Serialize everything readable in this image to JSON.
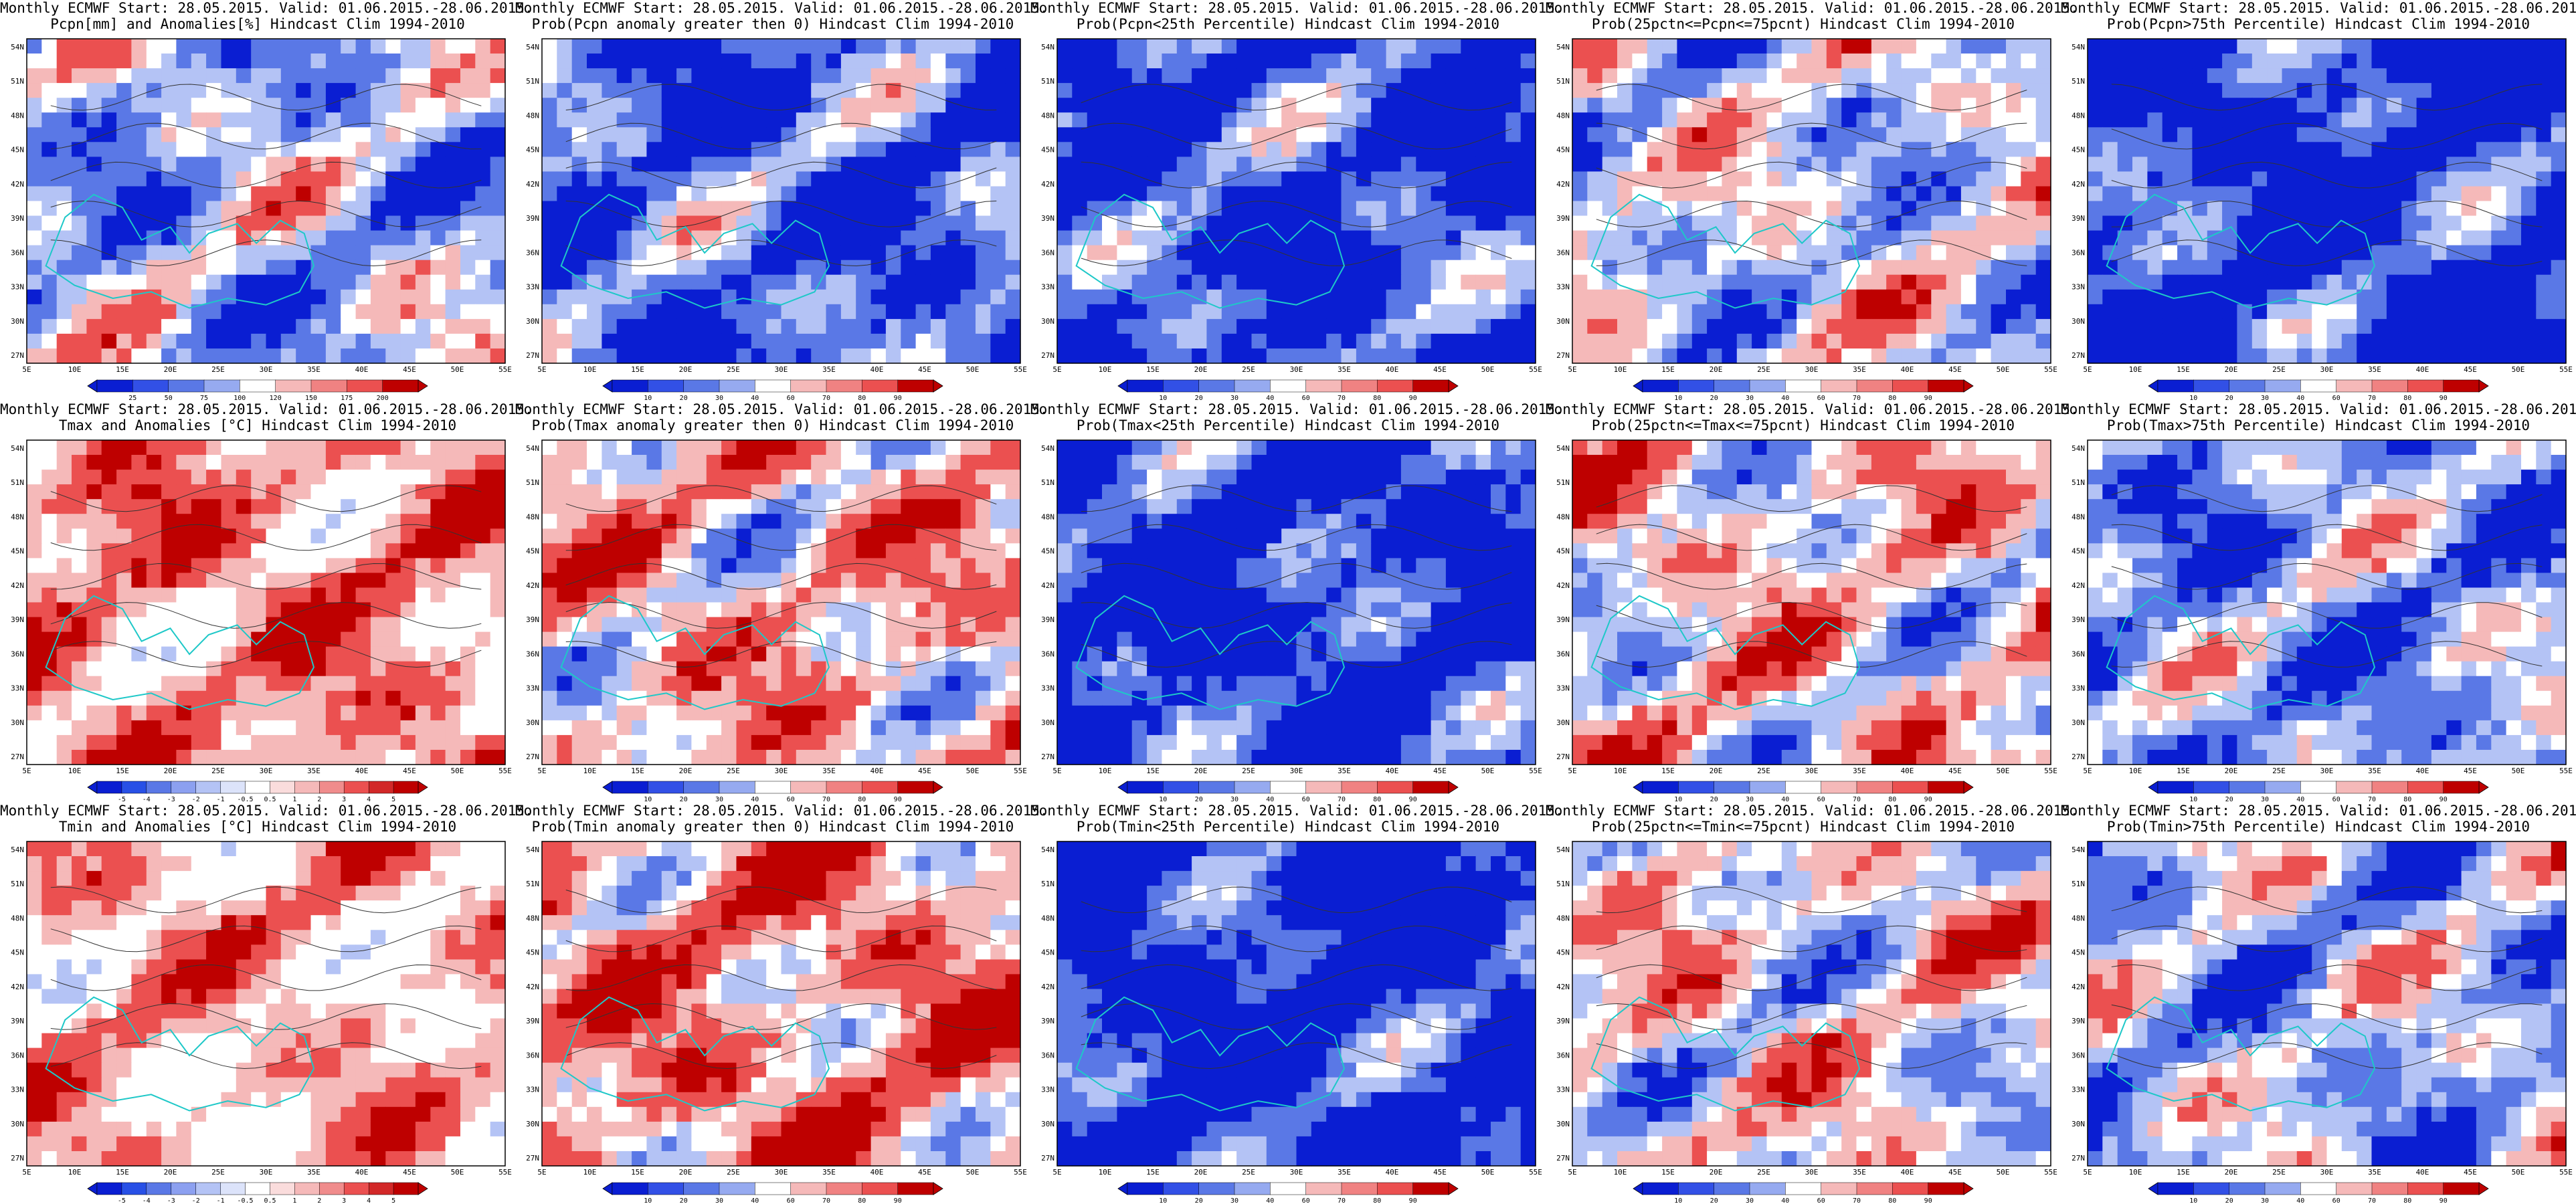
{
  "header": "Monthly ECMWF Start: 28.05.2015. Valid: 01.06.2015.-28.06.2015.",
  "lon_labels": [
    "5E",
    "10E",
    "15E",
    "20E",
    "25E",
    "30E",
    "35E",
    "40E",
    "45E",
    "50E",
    "55E"
  ],
  "lat_labels": [
    "54N",
    "51N",
    "48N",
    "45N",
    "42N",
    "39N",
    "36N",
    "33N",
    "30N",
    "27N"
  ],
  "colors": {
    "blue_dark": "#0a1ed2",
    "blue_mid": "#5a78e6",
    "blue_light": "#b4c3f5",
    "red_light": "#f5b9b9",
    "red_mid": "#eb5050",
    "red_dark": "#be0000",
    "coast": "#1ec8c8"
  },
  "panels": [
    {
      "id": "pcpn-anom",
      "subtitle": "Pcpn[mm] and Anomalies[%] Hindcast Clim 1994-2010",
      "colorbar": [
        "25",
        "50",
        "75",
        "100",
        "120",
        "150",
        "175",
        "200"
      ],
      "palette": "bluered",
      "bias": -0.2
    },
    {
      "id": "pcpn-prob-gt0",
      "subtitle": "Prob(Pcpn anomaly greater then 0) Hindcast Clim 1994-2010",
      "colorbar": [
        "10",
        "20",
        "30",
        "40",
        "60",
        "70",
        "80",
        "90"
      ],
      "palette": "bluered",
      "bias": -0.5
    },
    {
      "id": "pcpn-prob-lt25",
      "subtitle": "Prob(Pcpn<25th Percentile) Hindcast Clim 1994-2010",
      "colorbar": [
        "10",
        "20",
        "30",
        "40",
        "60",
        "70",
        "80",
        "90"
      ],
      "palette": "bluered",
      "bias": -0.6
    },
    {
      "id": "pcpn-prob-mid",
      "subtitle": "Prob(25pctn<=Pcpn<=75pcnt) Hindcast Clim 1994-2010",
      "colorbar": [
        "10",
        "20",
        "30",
        "40",
        "60",
        "70",
        "80",
        "90"
      ],
      "palette": "bluered",
      "bias": -0.1
    },
    {
      "id": "pcpn-prob-gt75",
      "subtitle": "Prob(Pcpn>75th Percentile) Hindcast Clim 1994-2010",
      "colorbar": [
        "10",
        "20",
        "30",
        "40",
        "60",
        "70",
        "80",
        "90"
      ],
      "palette": "bluered",
      "bias": -0.7
    },
    {
      "id": "tmax-anom",
      "subtitle": "Tmax and Anomalies [°C] Hindcast Clim 1994-2010",
      "colorbar": [
        "-5",
        "-4",
        "-3",
        "-2",
        "-1",
        "-0.5",
        "0.5",
        "1",
        "2",
        "3",
        "4",
        "5"
      ],
      "palette": "whitered",
      "bias": 0.3
    },
    {
      "id": "tmax-prob-gt0",
      "subtitle": "Prob(Tmax anomaly greater then 0) Hindcast Clim 1994-2010",
      "colorbar": [
        "10",
        "20",
        "30",
        "40",
        "60",
        "70",
        "80",
        "90"
      ],
      "palette": "bluered",
      "bias": 0.2
    },
    {
      "id": "tmax-prob-lt25",
      "subtitle": "Prob(Tmax<25th Percentile) Hindcast Clim 1994-2010",
      "colorbar": [
        "10",
        "20",
        "30",
        "40",
        "60",
        "70",
        "80",
        "90"
      ],
      "palette": "bluered",
      "bias": -0.7
    },
    {
      "id": "tmax-prob-mid",
      "subtitle": "Prob(25pctn<=Tmax<=75pcnt) Hindcast Clim 1994-2010",
      "colorbar": [
        "10",
        "20",
        "30",
        "40",
        "60",
        "70",
        "80",
        "90"
      ],
      "palette": "bluered",
      "bias": 0.1
    },
    {
      "id": "tmax-prob-gt75",
      "subtitle": "Prob(Tmax>75th Percentile) Hindcast Clim 1994-2010",
      "colorbar": [
        "10",
        "20",
        "30",
        "40",
        "60",
        "70",
        "80",
        "90"
      ],
      "palette": "bluered",
      "bias": -0.3
    },
    {
      "id": "tmin-anom",
      "subtitle": "Tmin and Anomalies [°C] Hindcast Clim 1994-2010",
      "colorbar": [
        "-5",
        "-4",
        "-3",
        "-2",
        "-1",
        "-0.5",
        "0.5",
        "1",
        "2",
        "3",
        "4",
        "5"
      ],
      "palette": "whitered",
      "bias": 0.15
    },
    {
      "id": "tmin-prob-gt0",
      "subtitle": "Prob(Tmin anomaly greater then 0) Hindcast Clim 1994-2010",
      "colorbar": [
        "10",
        "20",
        "30",
        "40",
        "60",
        "70",
        "80",
        "90"
      ],
      "palette": "bluered",
      "bias": 0.35
    },
    {
      "id": "tmin-prob-lt25",
      "subtitle": "Prob(Tmin<25th Percentile) Hindcast Clim 1994-2010",
      "colorbar": [
        "10",
        "20",
        "30",
        "40",
        "60",
        "70",
        "80",
        "90"
      ],
      "palette": "bluered",
      "bias": -0.75
    },
    {
      "id": "tmin-prob-mid",
      "subtitle": "Prob(25pctn<=Tmin<=75pcnt) Hindcast Clim 1994-2010",
      "colorbar": [
        "10",
        "20",
        "30",
        "40",
        "60",
        "70",
        "80",
        "90"
      ],
      "palette": "bluered",
      "bias": 0.05
    },
    {
      "id": "tmin-prob-gt75",
      "subtitle": "Prob(Tmin>75th Percentile) Hindcast Clim 1994-2010",
      "colorbar": [
        "10",
        "20",
        "30",
        "40",
        "60",
        "70",
        "80",
        "90"
      ],
      "palette": "bluered",
      "bias": -0.2
    }
  ]
}
